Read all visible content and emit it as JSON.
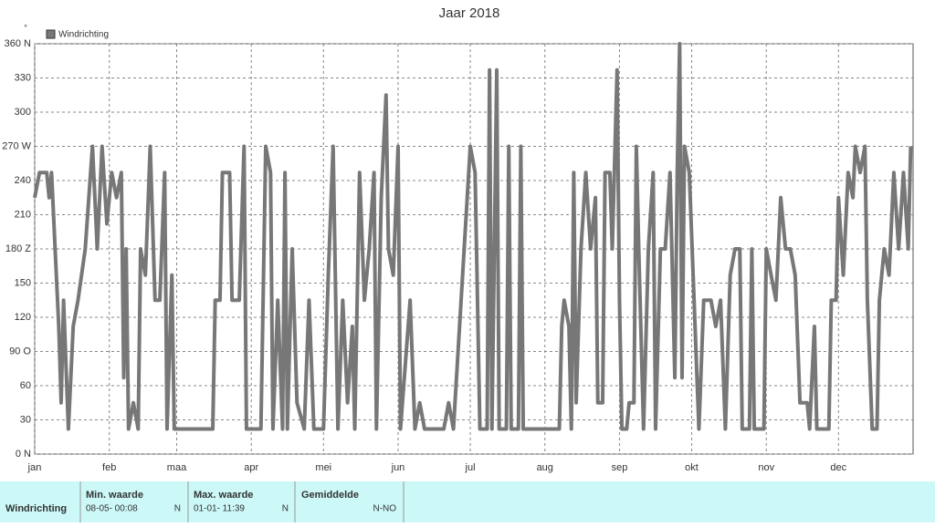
{
  "chart_data": {
    "type": "line",
    "title": "Jaar 2018",
    "y_unit": "°",
    "legend": "top-left",
    "grid": true,
    "x": [
      0,
      2,
      5,
      6,
      7,
      10,
      11,
      12,
      14,
      16,
      18,
      21,
      24,
      26,
      28,
      30,
      32,
      34,
      36,
      37,
      38,
      39,
      41,
      43,
      44,
      46,
      48,
      50,
      52,
      54,
      55,
      57,
      58,
      60,
      70,
      74,
      75,
      77,
      78,
      81,
      82,
      85,
      87,
      88,
      94,
      96,
      98,
      99,
      101,
      103,
      104,
      105,
      107,
      109,
      112,
      114,
      116,
      120,
      122,
      124,
      126,
      128,
      130,
      132,
      133,
      135,
      137,
      139,
      141,
      142,
      144,
      146,
      147,
      149,
      151,
      152,
      156,
      158,
      160,
      162,
      170,
      172,
      174,
      181,
      183,
      185,
      188,
      189,
      190,
      192,
      193,
      196,
      197,
      198,
      201,
      202,
      203,
      211,
      212,
      218,
      219,
      220,
      222,
      223,
      224,
      225,
      227,
      229,
      231,
      233,
      234,
      236,
      237,
      239,
      240,
      242,
      243,
      244,
      246,
      247,
      249,
      250,
      251,
      253,
      255,
      257,
      258,
      260,
      262,
      264,
      266,
      267,
      268,
      269,
      270,
      272,
      274,
      276,
      278,
      281,
      283,
      285,
      287,
      289,
      291,
      293,
      294,
      297,
      298,
      299,
      303,
      304,
      306,
      308,
      310,
      312,
      314,
      316,
      318,
      321,
      322,
      324,
      325,
      330,
      331,
      333,
      334,
      336,
      338,
      340,
      341,
      343,
      345,
      346,
      348,
      350,
      351,
      353,
      355,
      357,
      359,
      361,
      363,
      364
    ],
    "series": [
      {
        "name": "Windrichting",
        "color": "#777777",
        "values": [
          225,
          247,
          247,
          225,
          247,
          112,
          45,
          135,
          22,
          112,
          135,
          180,
          270,
          180,
          270,
          202,
          247,
          225,
          247,
          67,
          180,
          22,
          45,
          22,
          180,
          157,
          270,
          135,
          135,
          247,
          22,
          157,
          22,
          22,
          22,
          22,
          135,
          135,
          247,
          247,
          135,
          135,
          270,
          22,
          22,
          270,
          247,
          22,
          135,
          22,
          247,
          22,
          180,
          45,
          22,
          135,
          22,
          22,
          157,
          270,
          22,
          135,
          45,
          112,
          22,
          247,
          135,
          180,
          247,
          22,
          225,
          315,
          180,
          157,
          270,
          22,
          135,
          22,
          45,
          22,
          22,
          45,
          22,
          270,
          247,
          22,
          22,
          337,
          22,
          337,
          22,
          22,
          270,
          22,
          22,
          270,
          22,
          22,
          22,
          22,
          112,
          135,
          112,
          22,
          247,
          45,
          180,
          247,
          180,
          225,
          45,
          45,
          247,
          247,
          180,
          337,
          135,
          22,
          22,
          45,
          45,
          270,
          180,
          22,
          180,
          247,
          22,
          180,
          180,
          247,
          67,
          247,
          360,
          67,
          270,
          247,
          135,
          22,
          135,
          135,
          112,
          135,
          22,
          157,
          180,
          180,
          22,
          22,
          180,
          22,
          22,
          180,
          157,
          135,
          225,
          180,
          180,
          157,
          45,
          45,
          22,
          112,
          22,
          22,
          135,
          135,
          225,
          157,
          247,
          225,
          270,
          247,
          270,
          135,
          22,
          22,
          135,
          180,
          157,
          247,
          180,
          247,
          180,
          270
        ]
      }
    ],
    "xlim": [
      0,
      365
    ],
    "xticks": [
      {
        "value": 0,
        "label": "jan"
      },
      {
        "value": 31,
        "label": "feb"
      },
      {
        "value": 59,
        "label": "maa"
      },
      {
        "value": 90,
        "label": "apr"
      },
      {
        "value": 120,
        "label": "mei"
      },
      {
        "value": 151,
        "label": "jun"
      },
      {
        "value": 181,
        "label": "jul"
      },
      {
        "value": 212,
        "label": "aug"
      },
      {
        "value": 243,
        "label": "sep"
      },
      {
        "value": 273,
        "label": "okt"
      },
      {
        "value": 304,
        "label": "nov"
      },
      {
        "value": 334,
        "label": "dec"
      }
    ],
    "ylim": [
      0,
      360
    ],
    "yticks": [
      {
        "value": 0,
        "label": "0 N"
      },
      30,
      60,
      {
        "value": 90,
        "label": "90 O"
      },
      120,
      150,
      {
        "value": 180,
        "label": "180 Z"
      },
      210,
      240,
      {
        "value": 270,
        "label": "270 W"
      },
      300,
      330,
      {
        "value": 360,
        "label": "360 N"
      }
    ]
  },
  "summary_table": {
    "row_label": "Windrichting",
    "columns": [
      {
        "header": "Min. waarde",
        "value": "08-05- 00:08",
        "direction": "N"
      },
      {
        "header": "Max. waarde",
        "value": "01-01- 11:39",
        "direction": "N"
      },
      {
        "header": "Gemiddelde",
        "value": "N-NO"
      }
    ]
  }
}
